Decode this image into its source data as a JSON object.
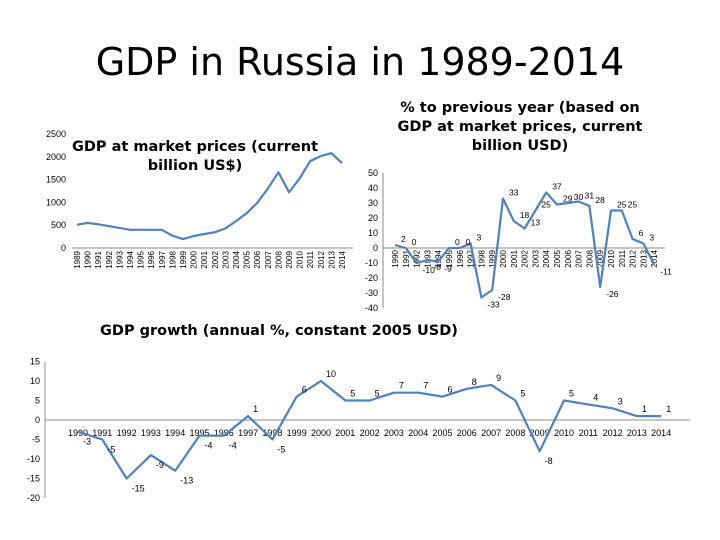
{
  "slide": {
    "title": "GDP in Russia in 1989-2014"
  },
  "chart_data": [
    {
      "type": "line",
      "title": "GDP at market prices (current billion US$)",
      "x": [
        "1989",
        "1990",
        "1991",
        "1992",
        "1993",
        "1994",
        "1995",
        "1996",
        "1997",
        "1998",
        "1999",
        "2000",
        "2001",
        "2002",
        "2003",
        "2004",
        "2005",
        "2006",
        "2007",
        "2008",
        "2009",
        "2010",
        "2011",
        "2012",
        "2013",
        "2014"
      ],
      "series": [
        {
          "values": [
            510,
            550,
            520,
            480,
            440,
            400,
            400,
            400,
            400,
            270,
            195,
            260,
            306,
            345,
            430,
            591,
            764,
            990,
            1300,
            1661,
            1223,
            1525,
            1905,
            2017,
            2079,
            1861
          ],
          "color": "#4f81bd"
        }
      ],
      "yticks": [
        0,
        500,
        1000,
        1500,
        2000,
        2500
      ],
      "ylim": [
        0,
        2500
      ]
    },
    {
      "type": "line",
      "title": "% to previous year (based on GDP at market prices, current billion USD)",
      "x": [
        "1990",
        "1991",
        "1992",
        "1993",
        "1994",
        "1995",
        "1996",
        "1997",
        "1998",
        "1999",
        "2000",
        "2001",
        "2002",
        "2003",
        "2004",
        "2005",
        "2006",
        "2007",
        "2008",
        "2009",
        "2010",
        "2011",
        "2012",
        "2013",
        "2014"
      ],
      "series": [
        {
          "values": [
            2,
            0,
            -10,
            -8,
            -9,
            0,
            0,
            3,
            -33,
            -28,
            33,
            18,
            13,
            25,
            37,
            29,
            30,
            31,
            28,
            -26,
            25,
            25,
            6,
            3,
            -11
          ],
          "color": "#4f81bd"
        }
      ],
      "yticks": [
        50,
        40,
        30,
        20,
        10,
        0,
        -10,
        -20,
        -30,
        -40
      ],
      "ylim": [
        -40,
        50
      ]
    },
    {
      "type": "line",
      "title": "GDP growth (annual %, constant 2005 USD)",
      "x": [
        "1990",
        "1991",
        "1992",
        "1993",
        "1994",
        "1995",
        "1996",
        "1997",
        "1998",
        "1999",
        "2000",
        "2001",
        "2002",
        "2003",
        "2004",
        "2005",
        "2006",
        "2007",
        "2008",
        "2009",
        "2010",
        "2011",
        "2012",
        "2013",
        "2014"
      ],
      "series": [
        {
          "values": [
            -3,
            -5,
            -15,
            -9,
            -13,
            -4,
            -4,
            1,
            -5,
            6,
            10,
            5,
            5,
            7,
            7,
            6,
            8,
            9,
            5,
            -8,
            5,
            4,
            3,
            1,
            1
          ],
          "color": "#4f81bd"
        }
      ],
      "yticks": [
        15,
        10,
        5,
        0,
        -5,
        -10,
        -15,
        -20
      ],
      "ylim": [
        -20,
        15
      ]
    }
  ]
}
